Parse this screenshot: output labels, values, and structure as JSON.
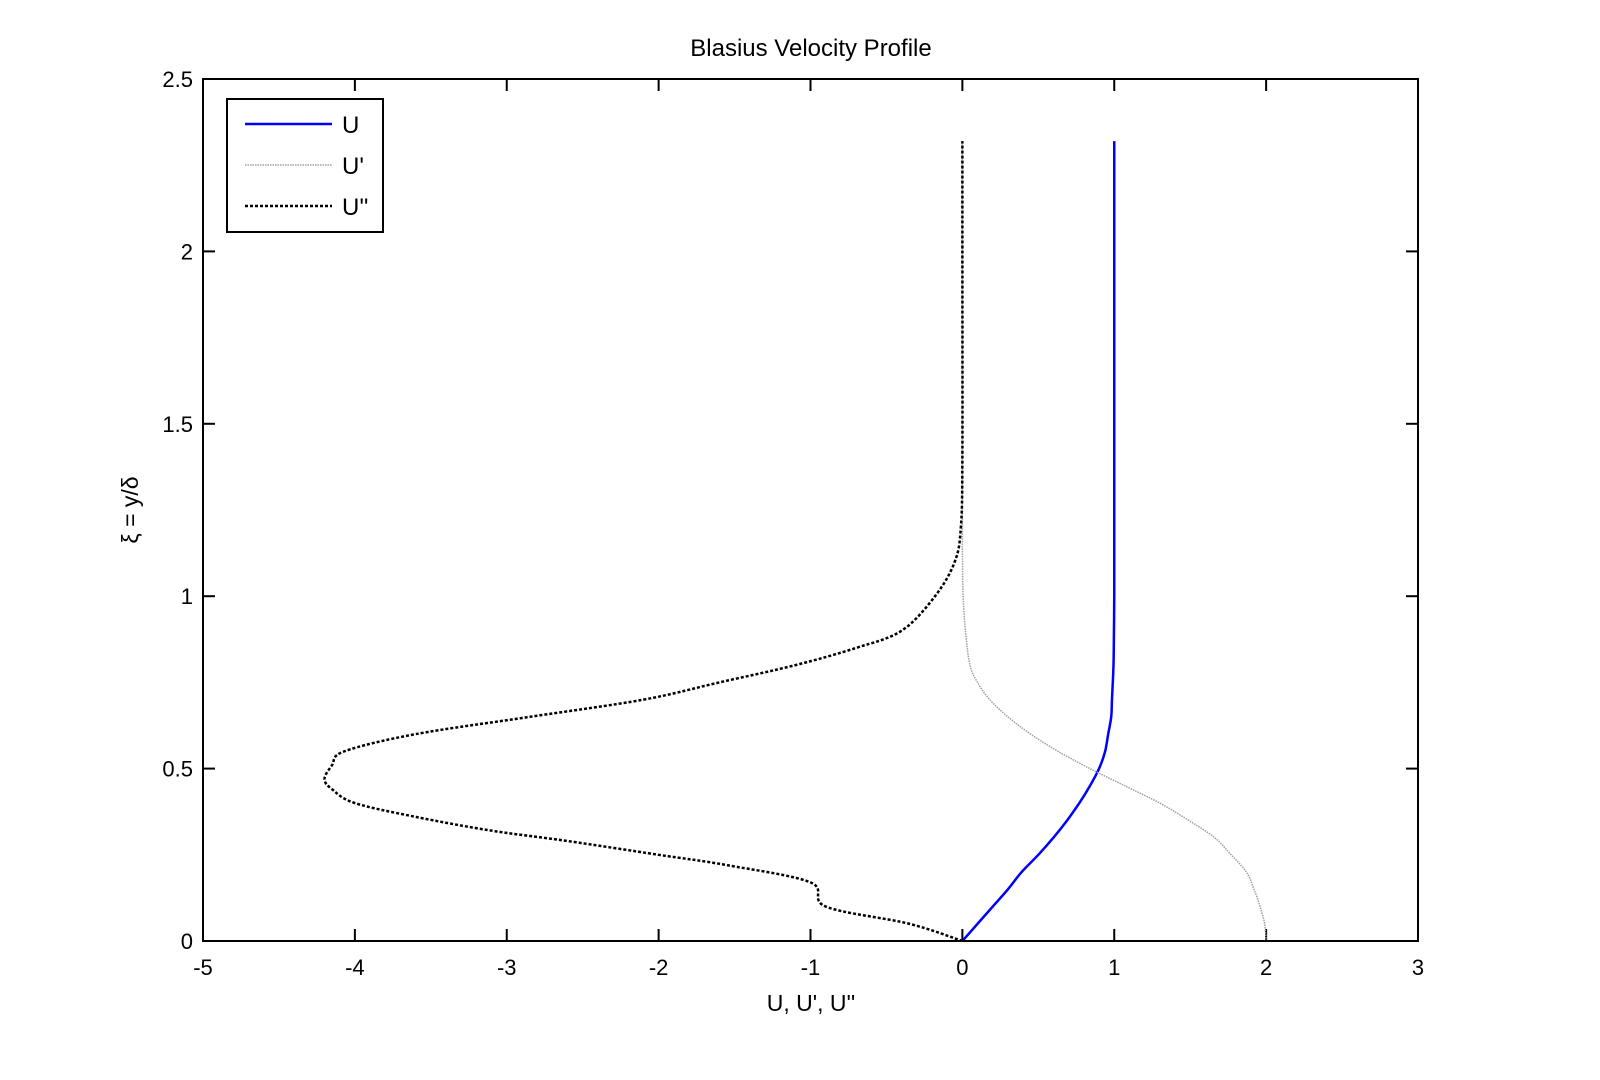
{
  "chart_data": {
    "type": "line",
    "title": "Blasius Velocity Profile",
    "xlabel": "U, U', U''",
    "ylabel": "ξ = y/δ",
    "xlim": [
      -5,
      3
    ],
    "ylim": [
      0,
      2.5
    ],
    "xticks": [
      -5,
      -4,
      -3,
      -2,
      -1,
      0,
      1,
      2,
      3
    ],
    "yticks": [
      0,
      0.5,
      1,
      1.5,
      2,
      2.5
    ],
    "xtick_labels": [
      "-5",
      "-4",
      "-3",
      "-2",
      "-1",
      "0",
      "1",
      "2",
      "3"
    ],
    "ytick_labels": [
      "0",
      "0.5",
      "1",
      "1.5",
      "2",
      "2.5"
    ],
    "grid": false,
    "legend_position": "top-left",
    "series": [
      {
        "name": "U",
        "color": "#0000ff",
        "style": "solid",
        "points": [
          [
            0,
            0
          ],
          [
            0.1,
            0.05
          ],
          [
            0.2,
            0.1
          ],
          [
            0.3,
            0.15
          ],
          [
            0.39,
            0.2
          ],
          [
            0.5,
            0.25
          ],
          [
            0.6,
            0.3
          ],
          [
            0.69,
            0.35
          ],
          [
            0.77,
            0.4
          ],
          [
            0.84,
            0.45
          ],
          [
            0.9,
            0.5
          ],
          [
            0.94,
            0.55
          ],
          [
            0.96,
            0.6
          ],
          [
            0.98,
            0.65
          ],
          [
            0.985,
            0.7
          ],
          [
            0.995,
            0.8
          ],
          [
            0.998,
            0.9
          ],
          [
            1,
            1.0
          ],
          [
            1,
            1.2
          ],
          [
            1,
            1.6
          ],
          [
            1,
            2.0
          ],
          [
            1,
            2.32
          ]
        ]
      },
      {
        "name": "U'",
        "color": "#a0a0a0",
        "style": "dotted",
        "points": [
          [
            2.0,
            0
          ],
          [
            1.99,
            0.05
          ],
          [
            1.96,
            0.1
          ],
          [
            1.92,
            0.15
          ],
          [
            1.87,
            0.2
          ],
          [
            1.77,
            0.25
          ],
          [
            1.66,
            0.3
          ],
          [
            1.49,
            0.35
          ],
          [
            1.3,
            0.4
          ],
          [
            1.07,
            0.45
          ],
          [
            0.84,
            0.5
          ],
          [
            0.63,
            0.55
          ],
          [
            0.45,
            0.6
          ],
          [
            0.3,
            0.65
          ],
          [
            0.18,
            0.7
          ],
          [
            0.1,
            0.75
          ],
          [
            0.05,
            0.8
          ],
          [
            0.02,
            0.9
          ],
          [
            0.005,
            1.0
          ],
          [
            0.001,
            1.1
          ],
          [
            0,
            1.2
          ],
          [
            0,
            1.6
          ],
          [
            0,
            2.0
          ],
          [
            0,
            2.32
          ]
        ]
      },
      {
        "name": "U''",
        "color": "#000000",
        "style": "dashed",
        "points": [
          [
            0,
            0
          ],
          [
            -0.35,
            0.05
          ],
          [
            -0.9,
            0.1
          ],
          [
            -1.0,
            0.17
          ],
          [
            -1.55,
            0.22
          ],
          [
            -2.0,
            0.25
          ],
          [
            -2.6,
            0.29
          ],
          [
            -3.1,
            0.32
          ],
          [
            -3.6,
            0.36
          ],
          [
            -4.0,
            0.4
          ],
          [
            -4.15,
            0.44
          ],
          [
            -4.2,
            0.47
          ],
          [
            -4.15,
            0.51
          ],
          [
            -4.07,
            0.55
          ],
          [
            -3.6,
            0.6
          ],
          [
            -2.85,
            0.65
          ],
          [
            -2.1,
            0.7
          ],
          [
            -1.6,
            0.75
          ],
          [
            -1.1,
            0.8
          ],
          [
            -0.7,
            0.85
          ],
          [
            -0.4,
            0.9
          ],
          [
            -0.18,
            1.0
          ],
          [
            -0.05,
            1.1
          ],
          [
            -0.01,
            1.2
          ],
          [
            0,
            1.4
          ],
          [
            0,
            2.0
          ],
          [
            0,
            2.32
          ]
        ]
      }
    ]
  }
}
